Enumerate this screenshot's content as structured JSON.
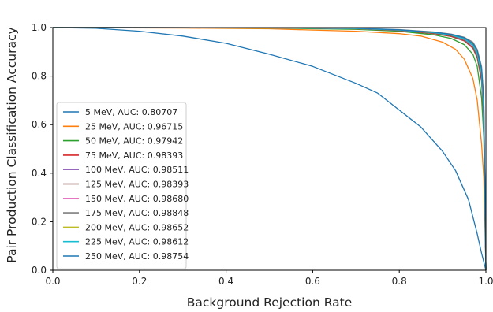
{
  "chart_data": {
    "type": "line",
    "title": "",
    "xlabel": "Background Rejection Rate",
    "ylabel": "Pair Production Classification Accuracy",
    "xlim": [
      0.0,
      1.0
    ],
    "ylim": [
      0.0,
      1.0
    ],
    "xticks": [
      "0.0",
      "0.2",
      "0.4",
      "0.6",
      "0.8",
      "1.0"
    ],
    "yticks": [
      "0.0",
      "0.2",
      "0.4",
      "0.6",
      "0.8",
      "1.0"
    ],
    "grid": false,
    "legend_position": "lower-left",
    "series": [
      {
        "name": "5 MeV, AUC: 0.80707",
        "color": "#1f77b4",
        "x": [
          0.0,
          0.1,
          0.2,
          0.3,
          0.4,
          0.5,
          0.6,
          0.7,
          0.75,
          0.8,
          0.85,
          0.9,
          0.93,
          0.96,
          0.98,
          0.99,
          1.0
        ],
        "y": [
          1.0,
          0.997,
          0.985,
          0.965,
          0.935,
          0.89,
          0.84,
          0.77,
          0.73,
          0.66,
          0.59,
          0.49,
          0.41,
          0.29,
          0.15,
          0.07,
          0.0
        ]
      },
      {
        "name": "25 MeV, AUC: 0.96715",
        "color": "#ff7f0e",
        "x": [
          0.0,
          0.3,
          0.5,
          0.6,
          0.7,
          0.8,
          0.85,
          0.9,
          0.93,
          0.95,
          0.97,
          0.98,
          0.99,
          0.995,
          1.0
        ],
        "y": [
          1.0,
          0.998,
          0.995,
          0.99,
          0.985,
          0.975,
          0.965,
          0.94,
          0.91,
          0.87,
          0.79,
          0.7,
          0.52,
          0.38,
          0.0
        ]
      },
      {
        "name": "50 MeV, AUC: 0.97942",
        "color": "#2ca02c",
        "x": [
          0.0,
          0.5,
          0.7,
          0.8,
          0.88,
          0.92,
          0.95,
          0.97,
          0.98,
          0.99,
          0.995,
          1.0
        ],
        "y": [
          1.0,
          0.998,
          0.993,
          0.985,
          0.97,
          0.955,
          0.93,
          0.89,
          0.84,
          0.71,
          0.55,
          0.0
        ]
      },
      {
        "name": "75 MeV, AUC: 0.98393",
        "color": "#d62728",
        "x": [
          0.0,
          0.5,
          0.7,
          0.8,
          0.88,
          0.92,
          0.95,
          0.97,
          0.98,
          0.99,
          0.995,
          1.0
        ],
        "y": [
          1.0,
          0.999,
          0.995,
          0.988,
          0.975,
          0.963,
          0.945,
          0.915,
          0.875,
          0.78,
          0.62,
          0.0
        ]
      },
      {
        "name": "100 MeV, AUC: 0.98511",
        "color": "#9467bd",
        "x": [
          0.0,
          0.5,
          0.7,
          0.8,
          0.88,
          0.92,
          0.95,
          0.97,
          0.98,
          0.99,
          0.995,
          1.0
        ],
        "y": [
          1.0,
          0.999,
          0.996,
          0.99,
          0.978,
          0.968,
          0.952,
          0.925,
          0.89,
          0.8,
          0.65,
          0.0
        ]
      },
      {
        "name": "125 MeV, AUC: 0.98393",
        "color": "#8c564b",
        "x": [
          0.0,
          0.5,
          0.7,
          0.8,
          0.88,
          0.92,
          0.95,
          0.97,
          0.98,
          0.99,
          0.995,
          1.0
        ],
        "y": [
          1.0,
          0.999,
          0.995,
          0.988,
          0.976,
          0.965,
          0.947,
          0.918,
          0.88,
          0.785,
          0.63,
          0.0
        ]
      },
      {
        "name": "150 MeV, AUC: 0.98680",
        "color": "#e377c2",
        "x": [
          0.0,
          0.5,
          0.7,
          0.8,
          0.88,
          0.92,
          0.95,
          0.97,
          0.98,
          0.99,
          0.995,
          1.0
        ],
        "y": [
          1.0,
          0.999,
          0.996,
          0.99,
          0.98,
          0.97,
          0.956,
          0.93,
          0.9,
          0.82,
          0.68,
          0.0
        ]
      },
      {
        "name": "175 MeV, AUC: 0.98848",
        "color": "#7f7f7f",
        "x": [
          0.0,
          0.5,
          0.7,
          0.8,
          0.88,
          0.92,
          0.95,
          0.97,
          0.98,
          0.99,
          0.995,
          1.0
        ],
        "y": [
          1.0,
          0.999,
          0.997,
          0.992,
          0.982,
          0.973,
          0.96,
          0.94,
          0.91,
          0.84,
          0.71,
          0.0
        ]
      },
      {
        "name": "200 MeV, AUC: 0.98652",
        "color": "#bcbd22",
        "x": [
          0.0,
          0.5,
          0.7,
          0.8,
          0.88,
          0.92,
          0.95,
          0.97,
          0.98,
          0.99,
          0.995,
          1.0
        ],
        "y": [
          1.0,
          0.999,
          0.996,
          0.99,
          0.98,
          0.97,
          0.955,
          0.93,
          0.895,
          0.815,
          0.67,
          0.0
        ]
      },
      {
        "name": "225 MeV, AUC: 0.98612",
        "color": "#17becf",
        "x": [
          0.0,
          0.5,
          0.7,
          0.8,
          0.88,
          0.92,
          0.95,
          0.97,
          0.98,
          0.99,
          0.995,
          1.0
        ],
        "y": [
          1.0,
          0.999,
          0.996,
          0.99,
          0.979,
          0.969,
          0.954,
          0.928,
          0.893,
          0.81,
          0.66,
          0.0
        ]
      },
      {
        "name": "250 MeV, AUC: 0.98754",
        "color": "#1f77b4",
        "x": [
          0.0,
          0.5,
          0.7,
          0.8,
          0.88,
          0.92,
          0.95,
          0.97,
          0.98,
          0.99,
          0.995,
          1.0
        ],
        "y": [
          1.0,
          0.999,
          0.997,
          0.991,
          0.981,
          0.972,
          0.958,
          0.935,
          0.905,
          0.83,
          0.7,
          0.0
        ]
      }
    ]
  }
}
